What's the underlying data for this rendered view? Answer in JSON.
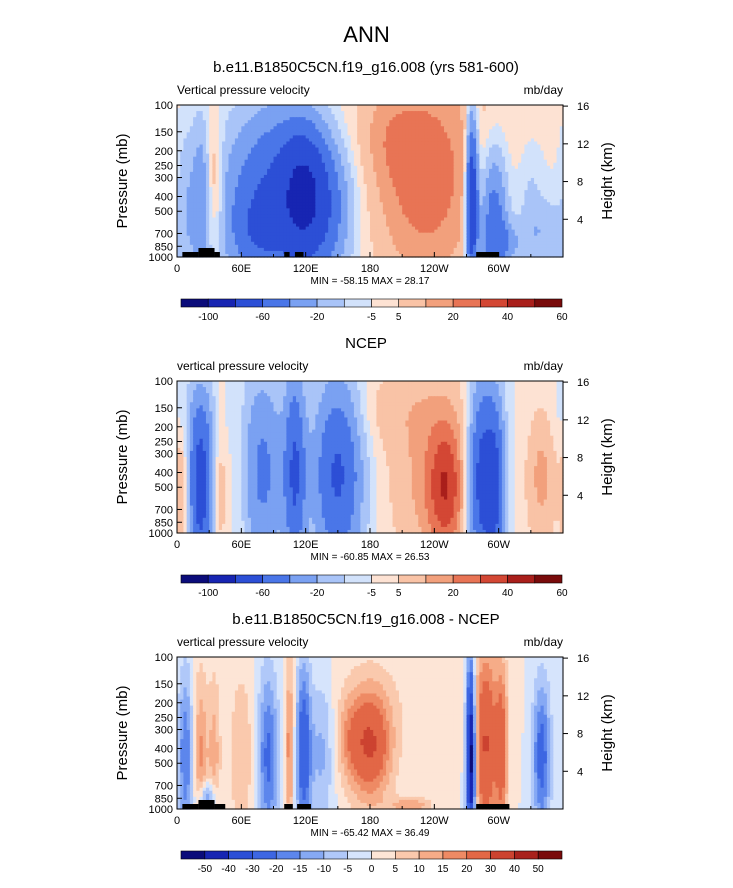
{
  "main_title": "ANN",
  "colors": {
    "levels_main": [
      "#0b0c7a",
      "#1725b2",
      "#2c4fd6",
      "#4a76e8",
      "#7aa1f2",
      "#a9c4f8",
      "#d2e2fb",
      "#fde2d3",
      "#f9c3a6",
      "#f2a07c",
      "#e87455",
      "#d34734",
      "#a91f1b",
      "#790b0b"
    ],
    "levels_diff": [
      "#0b0c7a",
      "#1725b2",
      "#2c4fd6",
      "#3d66e2",
      "#5d86ec",
      "#86a9f4",
      "#b0c8f9",
      "#d6e4fc",
      "#fde5d6",
      "#fac9ad",
      "#f6ac88",
      "#ee8a64",
      "#e26746",
      "#cc4330",
      "#a9221c",
      "#7a0b0b"
    ]
  },
  "chart_data": [
    {
      "type": "heatmap",
      "title": "b.e11.B1850C5CN.f19_g16.008 (yrs 581-600)",
      "left_label": "Vertical pressure velocity",
      "right_label": "mb/day",
      "ylabel": "Pressure (mb)",
      "ylabel_right": "Height (km)",
      "yticks": [
        "100",
        "150",
        "200",
        "250",
        "300",
        "400",
        "500",
        "700",
        "850",
        "1000"
      ],
      "yticks_right": [
        "16",
        "12",
        "8",
        "4"
      ],
      "xticks": [
        "0",
        "60E",
        "120E",
        "180",
        "120W",
        "60W"
      ],
      "xlim": [
        0,
        360
      ],
      "ylim": [
        1000,
        100
      ],
      "stats": "MIN = -58.15  MAX = 28.17",
      "colorbar": [
        "-100",
        "-60",
        "-20",
        "-5",
        "5",
        "20",
        "40",
        "60"
      ],
      "colorbar_levels": 14,
      "topography": [
        [
          5,
          20
        ],
        [
          20,
          35
        ],
        [
          35,
          40
        ],
        [
          100,
          105
        ],
        [
          110,
          118
        ],
        [
          279,
          300
        ]
      ],
      "features": [
        {
          "lon": 10,
          "p": 450,
          "dlon": 7,
          "dlogp": 0.4,
          "v": -8
        },
        {
          "lon": 22,
          "p": 450,
          "dlon": 5,
          "dlogp": 0.4,
          "v": -12
        },
        {
          "lon": 36,
          "p": 320,
          "dlon": 5,
          "dlogp": 0.28,
          "v": 12
        },
        {
          "lon": 95,
          "p": 380,
          "dlon": 35,
          "dlogp": 0.42,
          "v": -32
        },
        {
          "lon": 118,
          "p": 380,
          "dlon": 14,
          "dlogp": 0.3,
          "v": -30
        },
        {
          "lon": 75,
          "p": 700,
          "dlon": 18,
          "dlogp": 0.18,
          "v": -12
        },
        {
          "lon": 140,
          "p": 500,
          "dlon": 16,
          "dlogp": 0.3,
          "v": -14
        },
        {
          "lon": 232,
          "p": 330,
          "dlon": 36,
          "dlogp": 0.48,
          "v": 20
        },
        {
          "lon": 200,
          "p": 170,
          "dlon": 20,
          "dlogp": 0.2,
          "v": 5
        },
        {
          "lon": 275,
          "p": 420,
          "dlon": 4,
          "dlogp": 0.4,
          "v": -52
        },
        {
          "lon": 295,
          "p": 600,
          "dlon": 9,
          "dlogp": 0.35,
          "v": -28
        },
        {
          "lon": 308,
          "p": 800,
          "dlon": 10,
          "dlogp": 0.1,
          "v": -12
        },
        {
          "lon": 330,
          "p": 500,
          "dlon": 8,
          "dlogp": 0.3,
          "v": -6
        },
        {
          "lon": 345,
          "p": 700,
          "dlon": 12,
          "dlogp": 0.15,
          "v": -8
        },
        {
          "lon": 180,
          "p": 100,
          "dlon": 150,
          "dlogp": 0.3,
          "v": 3
        }
      ]
    },
    {
      "type": "heatmap",
      "title": "NCEP",
      "left_label": "vertical pressure velocity",
      "right_label": "mb/day",
      "ylabel": "Pressure (mb)",
      "ylabel_right": "Height (km)",
      "yticks": [
        "100",
        "150",
        "200",
        "250",
        "300",
        "400",
        "500",
        "700",
        "850",
        "1000"
      ],
      "yticks_right": [
        "16",
        "12",
        "8",
        "4"
      ],
      "xticks": [
        "0",
        "60E",
        "120E",
        "180",
        "120W",
        "60W"
      ],
      "xlim": [
        0,
        360
      ],
      "ylim": [
        1000,
        100
      ],
      "stats": "MIN = -60.85  MAX = 26.53",
      "colorbar": [
        "-100",
        "-60",
        "-20",
        "-5",
        "5",
        "20",
        "40",
        "60"
      ],
      "colorbar_levels": 14,
      "topography": [],
      "features": [
        {
          "lon": 5,
          "p": 600,
          "dlon": 5,
          "dlogp": 0.35,
          "v": 12
        },
        {
          "lon": 22,
          "p": 500,
          "dlon": 8,
          "dlogp": 0.4,
          "v": -38
        },
        {
          "lon": 40,
          "p": 500,
          "dlon": 5,
          "dlogp": 0.4,
          "v": 8
        },
        {
          "lon": 80,
          "p": 400,
          "dlon": 14,
          "dlogp": 0.45,
          "v": -20
        },
        {
          "lon": 110,
          "p": 400,
          "dlon": 7,
          "dlogp": 0.45,
          "v": -30
        },
        {
          "lon": 150,
          "p": 400,
          "dlon": 16,
          "dlogp": 0.45,
          "v": -32
        },
        {
          "lon": 58,
          "p": 400,
          "dlon": 6,
          "dlogp": 0.4,
          "v": 4
        },
        {
          "lon": 245,
          "p": 450,
          "dlon": 30,
          "dlogp": 0.45,
          "v": 14
        },
        {
          "lon": 250,
          "p": 500,
          "dlon": 10,
          "dlogp": 0.25,
          "v": 22
        },
        {
          "lon": 285,
          "p": 450,
          "dlon": 10,
          "dlogp": 0.45,
          "v": -42
        },
        {
          "lon": 298,
          "p": 500,
          "dlon": 6,
          "dlogp": 0.4,
          "v": -22
        },
        {
          "lon": 340,
          "p": 400,
          "dlon": 10,
          "dlogp": 0.35,
          "v": 12
        },
        {
          "lon": 200,
          "p": 150,
          "dlon": 40,
          "dlogp": 0.2,
          "v": 5
        },
        {
          "lon": 10,
          "p": 180,
          "dlon": 30,
          "dlogp": 0.2,
          "v": -3
        }
      ]
    },
    {
      "type": "heatmap",
      "title": "b.e11.B1850C5CN.f19_g16.008 - NCEP",
      "left_label": "vertical pressure velocity",
      "right_label": "mb/day",
      "ylabel": "Pressure (mb)",
      "ylabel_right": "Height (km)",
      "yticks": [
        "100",
        "150",
        "200",
        "250",
        "300",
        "400",
        "500",
        "700",
        "850",
        "1000"
      ],
      "yticks_right": [
        "16",
        "12",
        "8",
        "4"
      ],
      "xticks": [
        "0",
        "60E",
        "120E",
        "180",
        "120W",
        "60W"
      ],
      "xlim": [
        0,
        360
      ],
      "ylim": [
        1000,
        100
      ],
      "stats": "MIN = -65.42  MAX = 36.49",
      "colorbar": [
        "-50",
        "-40",
        "-30",
        "-20",
        "-15",
        "-10",
        "-5",
        "0",
        "5",
        "10",
        "15",
        "20",
        "30",
        "40",
        "50"
      ],
      "colorbar_levels": 16,
      "topography": [
        [
          5,
          20
        ],
        [
          20,
          35
        ],
        [
          35,
          45
        ],
        [
          100,
          108
        ],
        [
          112,
          125
        ],
        [
          279,
          310
        ]
      ],
      "features": [
        {
          "lon": 8,
          "p": 450,
          "dlon": 5,
          "dlogp": 0.4,
          "v": -20
        },
        {
          "lon": 22,
          "p": 450,
          "dlon": 5,
          "dlogp": 0.4,
          "v": 16
        },
        {
          "lon": 35,
          "p": 450,
          "dlon": 4,
          "dlogp": 0.4,
          "v": 12
        },
        {
          "lon": 28,
          "p": 850,
          "dlon": 6,
          "dlogp": 0.08,
          "v": -20
        },
        {
          "lon": 60,
          "p": 450,
          "dlon": 8,
          "dlogp": 0.4,
          "v": 10
        },
        {
          "lon": 85,
          "p": 450,
          "dlon": 7,
          "dlogp": 0.4,
          "v": -22
        },
        {
          "lon": 105,
          "p": 400,
          "dlon": 3,
          "dlogp": 0.4,
          "v": 18
        },
        {
          "lon": 118,
          "p": 400,
          "dlon": 5,
          "dlogp": 0.4,
          "v": -28
        },
        {
          "lon": 135,
          "p": 400,
          "dlon": 8,
          "dlogp": 0.35,
          "v": -12
        },
        {
          "lon": 180,
          "p": 380,
          "dlon": 14,
          "dlogp": 0.26,
          "v": 30
        },
        {
          "lon": 160,
          "p": 350,
          "dlon": 8,
          "dlogp": 0.2,
          "v": 8
        },
        {
          "lon": 218,
          "p": 950,
          "dlon": 14,
          "dlogp": 0.04,
          "v": 14
        },
        {
          "lon": 274,
          "p": 450,
          "dlon": 3,
          "dlogp": 0.42,
          "v": -60
        },
        {
          "lon": 288,
          "p": 380,
          "dlon": 8,
          "dlogp": 0.45,
          "v": 30
        },
        {
          "lon": 303,
          "p": 400,
          "dlon": 4,
          "dlogp": 0.4,
          "v": 22
        },
        {
          "lon": 340,
          "p": 450,
          "dlon": 6,
          "dlogp": 0.35,
          "v": -24
        },
        {
          "lon": 200,
          "p": 200,
          "dlon": 60,
          "dlogp": 0.3,
          "v": 3
        }
      ]
    }
  ]
}
